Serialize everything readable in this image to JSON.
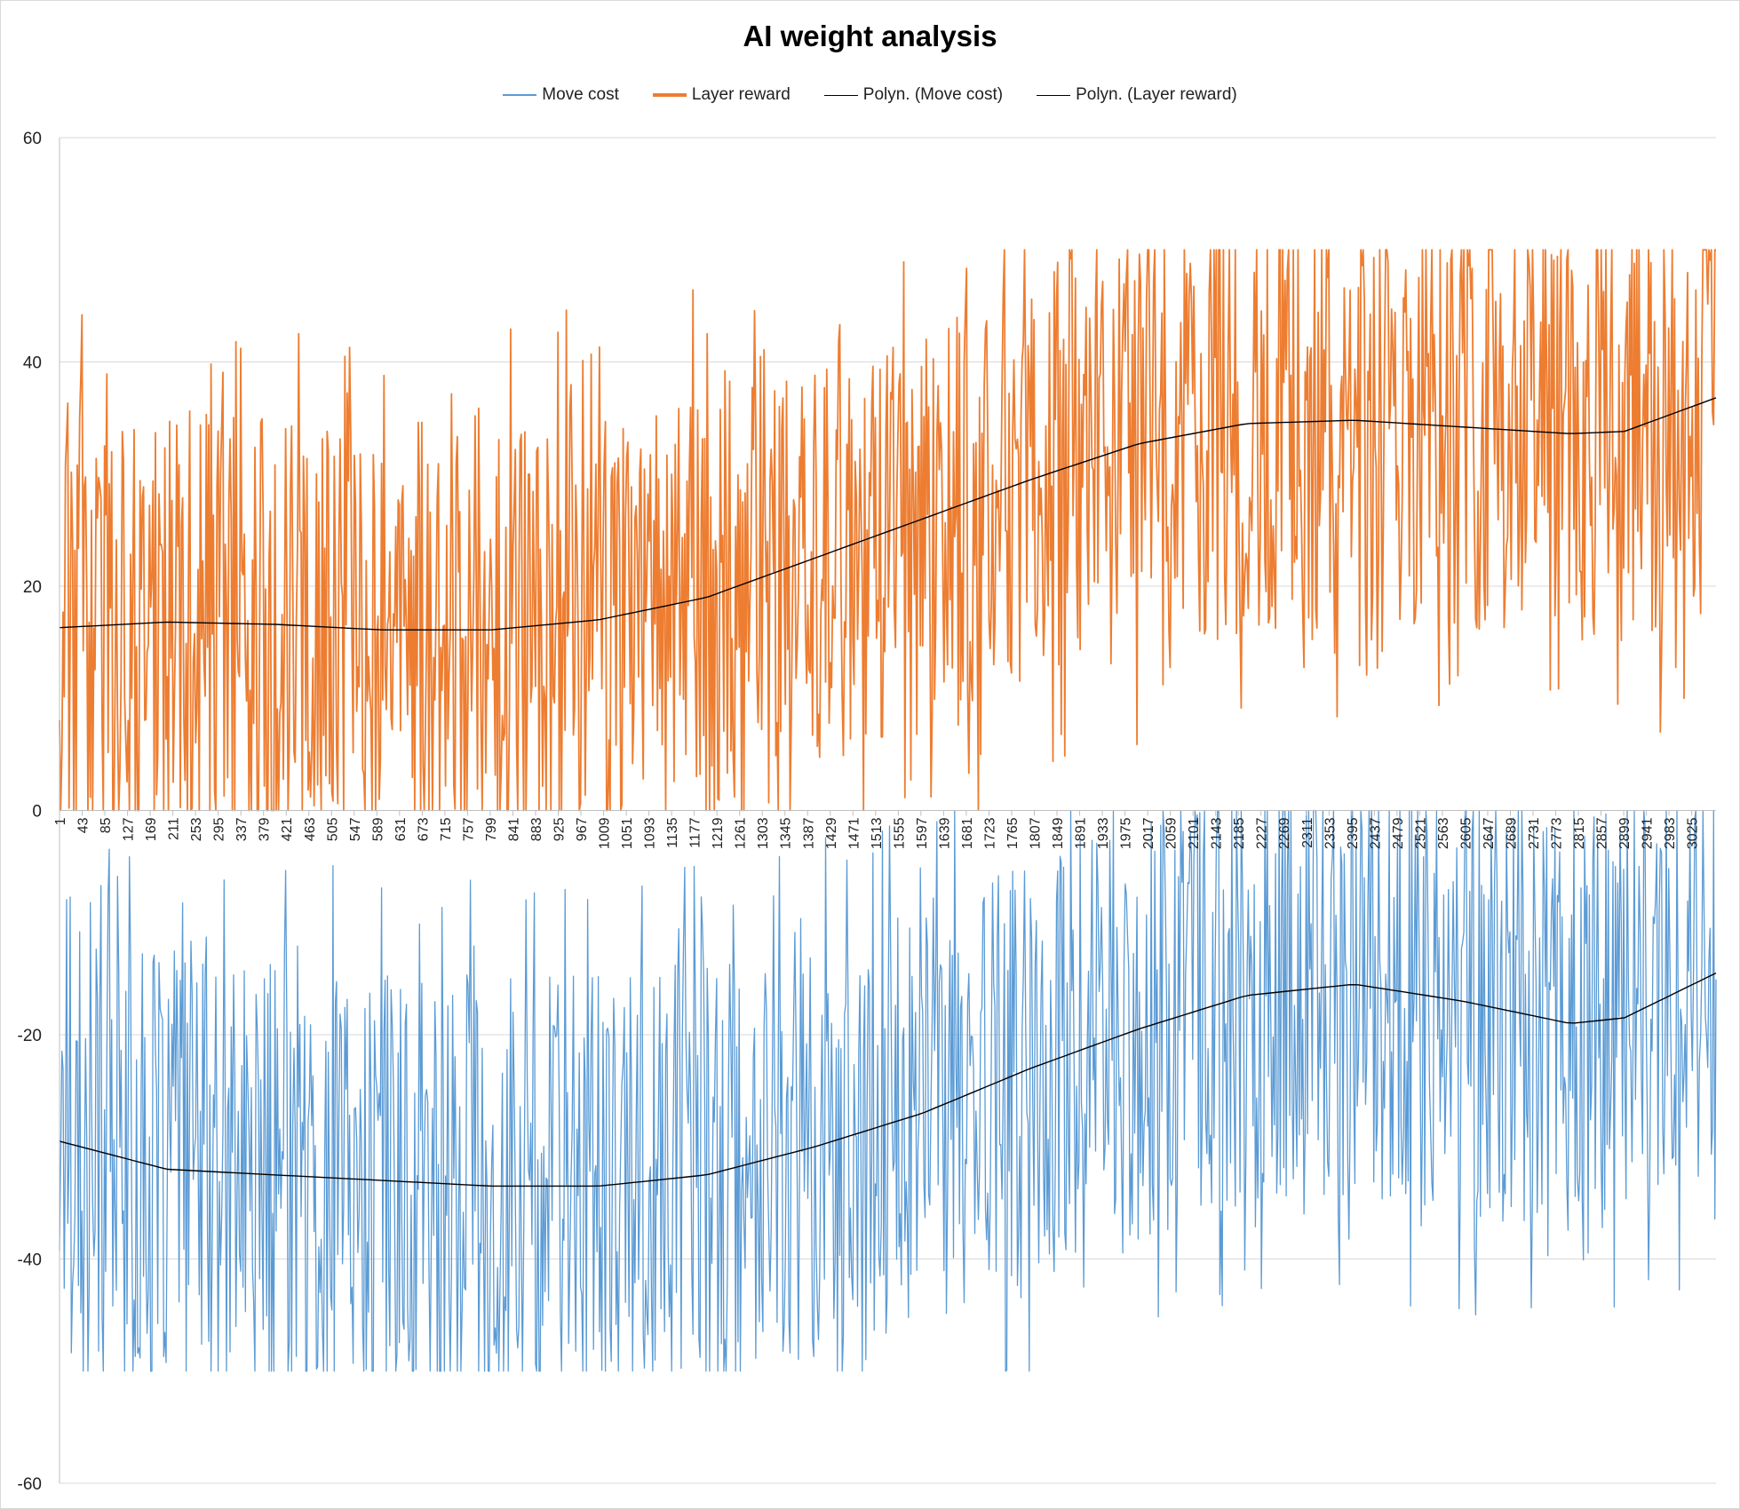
{
  "chart_data": {
    "type": "line",
    "title": "AI weight analysis",
    "xlabel": "",
    "ylabel": "",
    "ylim": [
      -60,
      60
    ],
    "yticks": [
      -60,
      -40,
      -20,
      0,
      20,
      40,
      60
    ],
    "xlim": [
      1,
      3070
    ],
    "x_tick_labels": [
      1,
      43,
      85,
      127,
      169,
      211,
      253,
      295,
      337,
      379,
      421,
      463,
      505,
      547,
      589,
      631,
      673,
      715,
      757,
      799,
      841,
      883,
      925,
      967,
      1009,
      1051,
      1093,
      1135,
      1177,
      1219,
      1261,
      1303,
      1345,
      1387,
      1429,
      1471,
      1513,
      1555,
      1597,
      1639,
      1681,
      1723,
      1765,
      1807,
      1849,
      1891,
      1933,
      1975,
      2017,
      2059,
      2101,
      2143,
      2185,
      2227,
      2269,
      2311,
      2353,
      2395,
      2437,
      2479,
      2521,
      2563,
      2605,
      2647,
      2689,
      2731,
      2773,
      2815,
      2857,
      2899,
      2941,
      2983,
      3025
    ],
    "grid": true,
    "legend_position": "top",
    "series": [
      {
        "name": "Move cost",
        "color": "#5b9bd5",
        "style": "noisy",
        "band": [
          -50,
          0
        ],
        "trend_x": [
          1,
          200,
          400,
          600,
          800,
          1000,
          1200,
          1400,
          1600,
          1800,
          2000,
          2200,
          2400,
          2600,
          2800,
          2900,
          3070
        ],
        "trend_y": [
          -29.5,
          -32,
          -32.5,
          -33,
          -33.5,
          -33.5,
          -32.5,
          -30,
          -27,
          -23,
          -19.5,
          -16.5,
          -15.5,
          -17,
          -19,
          -18.5,
          -14.5
        ]
      },
      {
        "name": "Layer reward",
        "color": "#ed7d31",
        "style": "noisy",
        "band": [
          0,
          50
        ],
        "trend_x": [
          1,
          200,
          400,
          600,
          800,
          1000,
          1200,
          1400,
          1600,
          1800,
          2000,
          2200,
          2400,
          2600,
          2800,
          2900,
          3070
        ],
        "trend_y": [
          16.3,
          16.8,
          16.6,
          16.1,
          16.1,
          17,
          19,
          22.5,
          26,
          29.5,
          32.7,
          34.5,
          34.8,
          34.2,
          33.6,
          33.8,
          36.8
        ]
      }
    ],
    "trendlines": [
      {
        "name": "Polyn.  (Move cost)",
        "color": "#000000",
        "of_series": "Move cost"
      },
      {
        "name": "Polyn.  (Layer reward)",
        "color": "#000000",
        "of_series": "Layer reward"
      }
    ]
  }
}
